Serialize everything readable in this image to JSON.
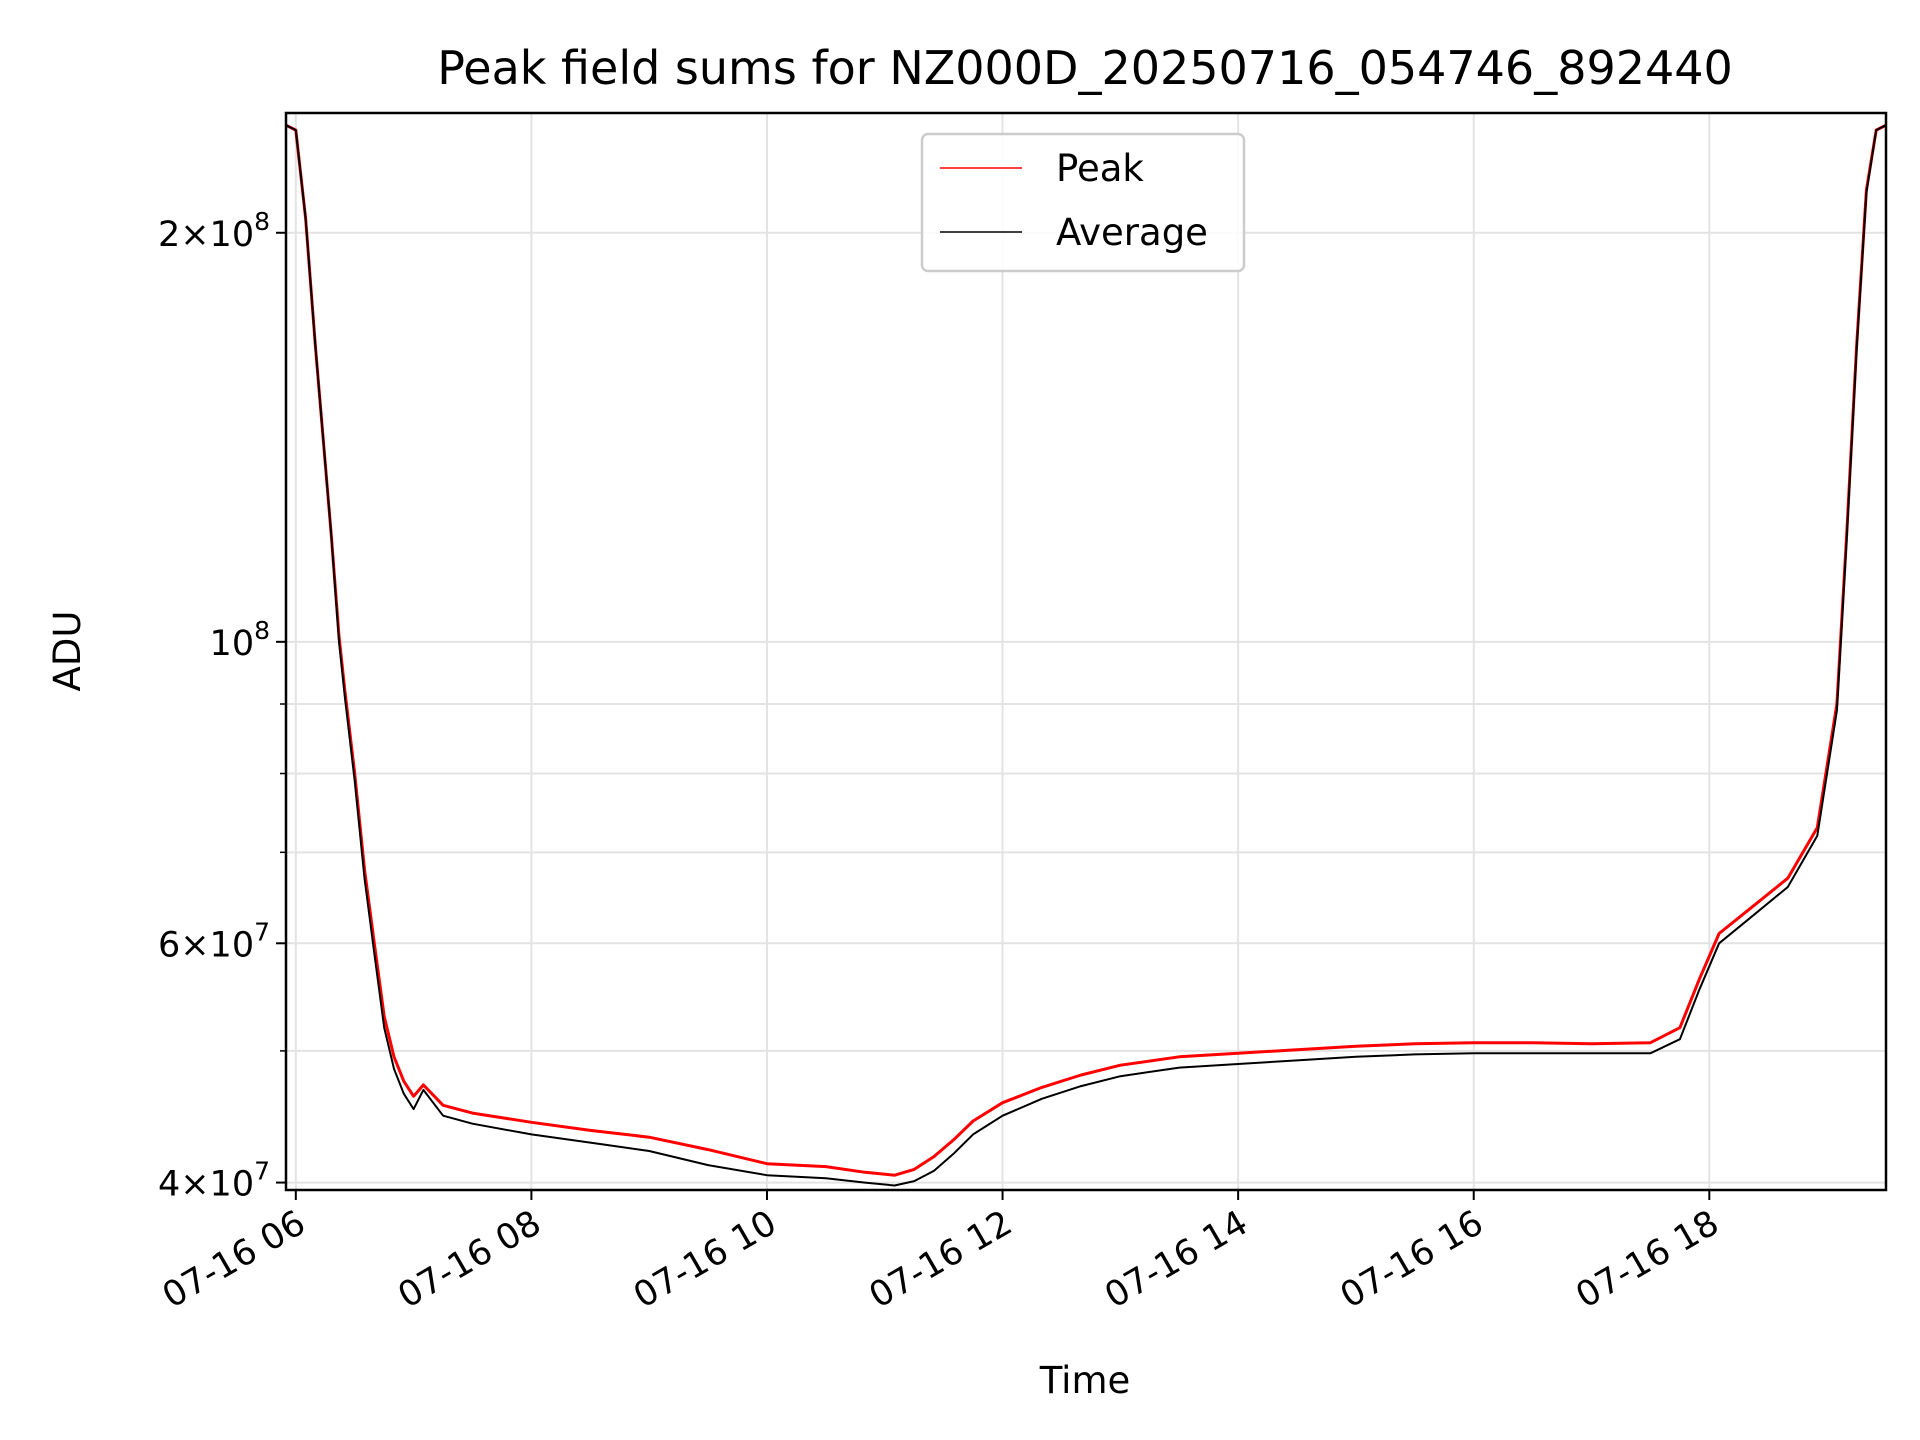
{
  "chart_data": {
    "type": "line",
    "title": "Peak field sums for NZ000D_20250716_054746_892440",
    "xlabel": "Time",
    "ylabel": "ADU",
    "yscale": "log",
    "xlim": [
      "2025-07-16 05:55",
      "2025-07-16 19:30"
    ],
    "ylim": [
      39500000,
      245000000
    ],
    "grid": true,
    "legend_position": "top-center",
    "x_tick_labels": [
      "07-16 06",
      "07-16 08",
      "07-16 10",
      "07-16 12",
      "07-16 14",
      "07-16 16",
      "07-16 18"
    ],
    "y_tick_labels": [
      {
        "value": 40000000,
        "base": "4",
        "exp": "7"
      },
      {
        "value": 60000000,
        "base": "6",
        "exp": "7"
      },
      {
        "value": 100000000,
        "base": "",
        "exp": "8"
      },
      {
        "value": 200000000,
        "base": "2",
        "exp": "8"
      }
    ],
    "y_minor_ticks": [
      50000000,
      70000000,
      80000000,
      90000000
    ],
    "series": [
      {
        "name": "Peak",
        "color": "#ff0000",
        "points": [
          [
            "2025-07-16 05:55",
            240000000
          ],
          [
            "2025-07-16 06:00",
            238000000
          ],
          [
            "2025-07-16 06:05",
            205000000
          ],
          [
            "2025-07-16 06:10",
            165000000
          ],
          [
            "2025-07-16 06:18",
            120000000
          ],
          [
            "2025-07-16 06:22",
            101000000
          ],
          [
            "2025-07-16 06:25",
            92000000
          ],
          [
            "2025-07-16 06:30",
            80000000
          ],
          [
            "2025-07-16 06:35",
            68000000
          ],
          [
            "2025-07-16 06:40",
            60000000
          ],
          [
            "2025-07-16 06:45",
            53000000
          ],
          [
            "2025-07-16 06:50",
            49500000
          ],
          [
            "2025-07-16 06:55",
            47500000
          ],
          [
            "2025-07-16 07:00",
            46300000
          ],
          [
            "2025-07-16 07:05",
            47200000
          ],
          [
            "2025-07-16 07:15",
            45600000
          ],
          [
            "2025-07-16 07:30",
            45000000
          ],
          [
            "2025-07-16 08:00",
            44300000
          ],
          [
            "2025-07-16 08:30",
            43700000
          ],
          [
            "2025-07-16 09:00",
            43200000
          ],
          [
            "2025-07-16 09:30",
            42300000
          ],
          [
            "2025-07-16 10:00",
            41300000
          ],
          [
            "2025-07-16 10:30",
            41100000
          ],
          [
            "2025-07-16 10:50",
            40700000
          ],
          [
            "2025-07-16 11:05",
            40500000
          ],
          [
            "2025-07-16 11:15",
            40900000
          ],
          [
            "2025-07-16 11:25",
            41800000
          ],
          [
            "2025-07-16 11:35",
            43000000
          ],
          [
            "2025-07-16 11:45",
            44400000
          ],
          [
            "2025-07-16 12:00",
            45800000
          ],
          [
            "2025-07-16 12:20",
            47000000
          ],
          [
            "2025-07-16 12:40",
            48000000
          ],
          [
            "2025-07-16 13:00",
            48800000
          ],
          [
            "2025-07-16 13:30",
            49500000
          ],
          [
            "2025-07-16 14:00",
            49800000
          ],
          [
            "2025-07-16 14:30",
            50100000
          ],
          [
            "2025-07-16 15:00",
            50400000
          ],
          [
            "2025-07-16 15:30",
            50600000
          ],
          [
            "2025-07-16 16:00",
            50700000
          ],
          [
            "2025-07-16 16:30",
            50700000
          ],
          [
            "2025-07-16 17:00",
            50600000
          ],
          [
            "2025-07-16 17:30",
            50700000
          ],
          [
            "2025-07-16 17:45",
            52000000
          ],
          [
            "2025-07-16 17:55",
            56500000
          ],
          [
            "2025-07-16 18:05",
            61000000
          ],
          [
            "2025-07-16 18:20",
            63500000
          ],
          [
            "2025-07-16 18:40",
            67000000
          ],
          [
            "2025-07-16 18:55",
            73000000
          ],
          [
            "2025-07-16 19:05",
            90000000
          ],
          [
            "2025-07-16 19:10",
            120000000
          ],
          [
            "2025-07-16 19:15",
            165000000
          ],
          [
            "2025-07-16 19:20",
            215000000
          ],
          [
            "2025-07-16 19:25",
            238000000
          ],
          [
            "2025-07-16 19:30",
            240000000
          ]
        ]
      },
      {
        "name": "Average",
        "color": "#000000",
        "points": [
          [
            "2025-07-16 05:55",
            240000000
          ],
          [
            "2025-07-16 06:00",
            238000000
          ],
          [
            "2025-07-16 06:05",
            205000000
          ],
          [
            "2025-07-16 06:10",
            165000000
          ],
          [
            "2025-07-16 06:18",
            120000000
          ],
          [
            "2025-07-16 06:22",
            100000000
          ],
          [
            "2025-07-16 06:25",
            91000000
          ],
          [
            "2025-07-16 06:30",
            79000000
          ],
          [
            "2025-07-16 06:35",
            67000000
          ],
          [
            "2025-07-16 06:40",
            59000000
          ],
          [
            "2025-07-16 06:45",
            52000000
          ],
          [
            "2025-07-16 06:50",
            48500000
          ],
          [
            "2025-07-16 06:55",
            46500000
          ],
          [
            "2025-07-16 07:00",
            45300000
          ],
          [
            "2025-07-16 07:05",
            46800000
          ],
          [
            "2025-07-16 07:15",
            44800000
          ],
          [
            "2025-07-16 07:30",
            44200000
          ],
          [
            "2025-07-16 08:00",
            43400000
          ],
          [
            "2025-07-16 08:30",
            42800000
          ],
          [
            "2025-07-16 09:00",
            42200000
          ],
          [
            "2025-07-16 09:30",
            41200000
          ],
          [
            "2025-07-16 10:00",
            40500000
          ],
          [
            "2025-07-16 10:30",
            40300000
          ],
          [
            "2025-07-16 10:50",
            40000000
          ],
          [
            "2025-07-16 11:05",
            39800000
          ],
          [
            "2025-07-16 11:15",
            40100000
          ],
          [
            "2025-07-16 11:25",
            40800000
          ],
          [
            "2025-07-16 11:35",
            42000000
          ],
          [
            "2025-07-16 11:45",
            43400000
          ],
          [
            "2025-07-16 12:00",
            44800000
          ],
          [
            "2025-07-16 12:20",
            46100000
          ],
          [
            "2025-07-16 12:40",
            47100000
          ],
          [
            "2025-07-16 13:00",
            47900000
          ],
          [
            "2025-07-16 13:30",
            48600000
          ],
          [
            "2025-07-16 14:00",
            48900000
          ],
          [
            "2025-07-16 14:30",
            49200000
          ],
          [
            "2025-07-16 15:00",
            49500000
          ],
          [
            "2025-07-16 15:30",
            49700000
          ],
          [
            "2025-07-16 16:00",
            49800000
          ],
          [
            "2025-07-16 16:30",
            49800000
          ],
          [
            "2025-07-16 17:00",
            49800000
          ],
          [
            "2025-07-16 17:30",
            49800000
          ],
          [
            "2025-07-16 17:45",
            51000000
          ],
          [
            "2025-07-16 17:55",
            55500000
          ],
          [
            "2025-07-16 18:05",
            60000000
          ],
          [
            "2025-07-16 18:20",
            62500000
          ],
          [
            "2025-07-16 18:40",
            66000000
          ],
          [
            "2025-07-16 18:55",
            72000000
          ],
          [
            "2025-07-16 19:05",
            89000000
          ],
          [
            "2025-07-16 19:10",
            119000000
          ],
          [
            "2025-07-16 19:15",
            164000000
          ],
          [
            "2025-07-16 19:20",
            214000000
          ],
          [
            "2025-07-16 19:25",
            238000000
          ],
          [
            "2025-07-16 19:30",
            240000000
          ]
        ]
      }
    ]
  }
}
